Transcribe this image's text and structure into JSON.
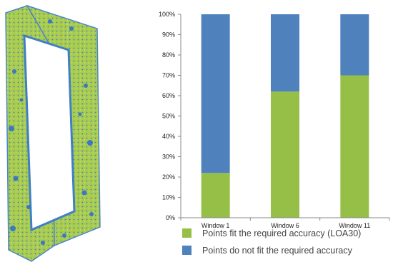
{
  "figure": {
    "frame_model_colors": {
      "fit": "#9dc43a",
      "not_fit": "#3a78c2"
    }
  },
  "chart_data": {
    "type": "bar",
    "stacked": true,
    "categories": [
      "Window 1",
      "Window 6",
      "Window 11"
    ],
    "series": [
      {
        "name": "Points fit the required accuracy (LOA30)",
        "values": [
          22,
          62,
          70
        ],
        "color": "#96bf48"
      },
      {
        "name": "Points do not fit the required accuracy",
        "values": [
          78,
          38,
          30
        ],
        "color": "#4f81bd"
      }
    ],
    "ylim": [
      0,
      100
    ],
    "yticks": [
      "0%",
      "10%",
      "20%",
      "30%",
      "40%",
      "50%",
      "60%",
      "70%",
      "80%",
      "90%",
      "100%"
    ],
    "grid": false,
    "legend_position": "bottom"
  }
}
